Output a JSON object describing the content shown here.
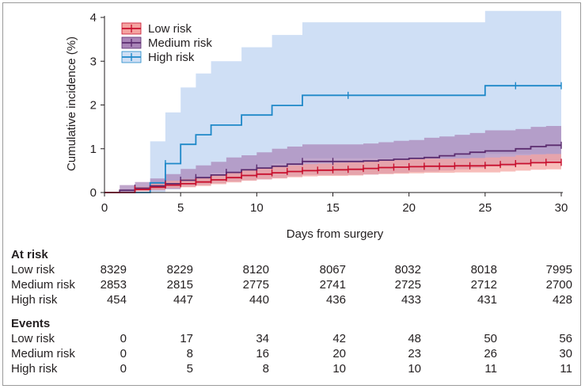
{
  "chart_data": {
    "type": "line",
    "step": true,
    "xlabel": "Days from surgery",
    "ylabel": "Cumulative incidence (%)",
    "xlim": [
      0,
      30
    ],
    "ylim": [
      0,
      4
    ],
    "xticks": [
      0,
      5,
      10,
      15,
      20,
      25,
      30
    ],
    "yticks": [
      0,
      1,
      2,
      3,
      4
    ],
    "grid": false,
    "legend_position": "top-left",
    "series": [
      {
        "name": "Low risk",
        "color": "#c8102e",
        "band_color": "#f4a3a0",
        "x": [
          0,
          1,
          2,
          3,
          4,
          5,
          6,
          7,
          8,
          9,
          10,
          11,
          12,
          13,
          14,
          15,
          16,
          17,
          18,
          19,
          20,
          21,
          22,
          23,
          24,
          25,
          26,
          27,
          28,
          29,
          30
        ],
        "y": [
          0,
          0,
          0.07,
          0.12,
          0.17,
          0.2,
          0.24,
          0.29,
          0.34,
          0.39,
          0.42,
          0.45,
          0.48,
          0.5,
          0.51,
          0.52,
          0.53,
          0.55,
          0.57,
          0.58,
          0.59,
          0.6,
          0.6,
          0.61,
          0.61,
          0.62,
          0.64,
          0.66,
          0.68,
          0.69,
          0.69
        ],
        "upper": [
          0,
          0,
          0.13,
          0.2,
          0.27,
          0.31,
          0.35,
          0.41,
          0.47,
          0.52,
          0.56,
          0.59,
          0.62,
          0.65,
          0.66,
          0.68,
          0.69,
          0.71,
          0.73,
          0.74,
          0.76,
          0.77,
          0.77,
          0.78,
          0.79,
          0.8,
          0.82,
          0.85,
          0.87,
          0.88,
          0.88
        ],
        "lower": [
          0,
          0,
          0.03,
          0.06,
          0.1,
          0.12,
          0.15,
          0.19,
          0.23,
          0.27,
          0.3,
          0.32,
          0.35,
          0.37,
          0.38,
          0.38,
          0.39,
          0.41,
          0.42,
          0.43,
          0.44,
          0.45,
          0.45,
          0.46,
          0.46,
          0.46,
          0.48,
          0.5,
          0.52,
          0.53,
          0.53
        ],
        "censor_x": [
          2,
          4,
          5,
          6,
          7,
          8,
          9,
          10,
          11,
          12,
          13,
          14,
          15,
          16,
          17,
          18,
          19,
          20,
          21,
          22,
          23,
          24,
          25,
          26,
          27,
          28,
          29,
          30
        ]
      },
      {
        "name": "Medium risk",
        "color": "#5b2c6f",
        "band_color": "#a985b8",
        "x": [
          0,
          1,
          2,
          3,
          4,
          5,
          6,
          7,
          8,
          9,
          10,
          11,
          12,
          13,
          14,
          15,
          16,
          17,
          18,
          19,
          20,
          21,
          22,
          23,
          24,
          25,
          26,
          27,
          28,
          29,
          30
        ],
        "y": [
          0,
          0.05,
          0.1,
          0.15,
          0.2,
          0.28,
          0.34,
          0.4,
          0.46,
          0.52,
          0.56,
          0.6,
          0.65,
          0.71,
          0.71,
          0.71,
          0.71,
          0.72,
          0.74,
          0.76,
          0.78,
          0.8,
          0.84,
          0.88,
          0.92,
          0.95,
          0.95,
          1.0,
          1.05,
          1.08,
          1.08
        ],
        "upper": [
          0,
          0.17,
          0.24,
          0.32,
          0.42,
          0.54,
          0.62,
          0.7,
          0.8,
          0.85,
          0.92,
          1.0,
          1.05,
          1.1,
          1.1,
          1.1,
          1.1,
          1.12,
          1.15,
          1.18,
          1.2,
          1.25,
          1.28,
          1.32,
          1.36,
          1.42,
          1.42,
          1.45,
          1.5,
          1.52,
          1.52
        ],
        "lower": [
          0,
          0.01,
          0.03,
          0.05,
          0.08,
          0.13,
          0.17,
          0.21,
          0.25,
          0.28,
          0.3,
          0.33,
          0.37,
          0.4,
          0.4,
          0.4,
          0.4,
          0.41,
          0.43,
          0.45,
          0.47,
          0.48,
          0.5,
          0.53,
          0.56,
          0.6,
          0.6,
          0.64,
          0.67,
          0.7,
          0.7
        ],
        "censor_x": [
          2,
          4,
          5,
          6,
          8,
          10,
          13,
          15,
          30
        ]
      },
      {
        "name": "High risk",
        "color": "#1e88c8",
        "band_color": "#cfdff5",
        "x": [
          0,
          3,
          4,
          5,
          6,
          7,
          9,
          11,
          13,
          25,
          30
        ],
        "y": [
          0,
          0.22,
          0.66,
          1.1,
          1.32,
          1.54,
          1.77,
          1.99,
          2.22,
          2.44,
          2.44
        ],
        "upper": [
          0,
          1.17,
          1.83,
          2.4,
          2.72,
          3.0,
          3.32,
          3.6,
          3.89,
          4.15,
          4.15
        ],
        "lower": [
          0,
          0.01,
          0.08,
          0.25,
          0.33,
          0.45,
          0.55,
          0.66,
          0.78,
          0.88,
          0.88
        ],
        "censor_x": [
          4,
          16,
          27,
          30
        ]
      }
    ]
  },
  "table": {
    "columns": [
      0,
      5,
      10,
      15,
      20,
      25,
      30
    ],
    "at_risk_title": "At risk",
    "events_title": "Events",
    "at_risk": [
      {
        "label": "Low risk",
        "values": [
          "8329",
          "8229",
          "8120",
          "8067",
          "8032",
          "8018",
          "7995"
        ]
      },
      {
        "label": "Medium risk",
        "values": [
          "2853",
          "2815",
          "2775",
          "2741",
          "2725",
          "2712",
          "2700"
        ]
      },
      {
        "label": "High risk",
        "values": [
          "454",
          "447",
          "440",
          "436",
          "433",
          "431",
          "428"
        ]
      }
    ],
    "events": [
      {
        "label": "Low risk",
        "values": [
          "0",
          "17",
          "34",
          "42",
          "48",
          "50",
          "56"
        ]
      },
      {
        "label": "Medium risk",
        "values": [
          "0",
          "8",
          "16",
          "20",
          "23",
          "26",
          "30"
        ]
      },
      {
        "label": "High risk",
        "values": [
          "0",
          "5",
          "8",
          "10",
          "10",
          "11",
          "11"
        ]
      }
    ]
  }
}
